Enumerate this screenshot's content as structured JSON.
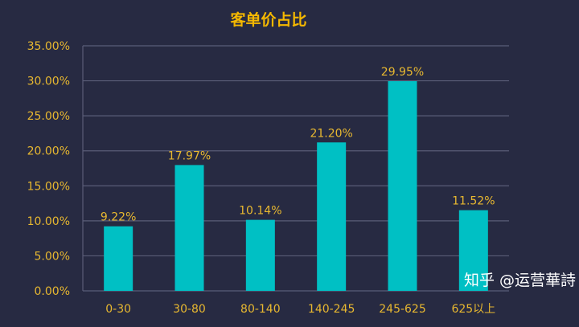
{
  "chart_data": {
    "type": "bar",
    "title": "客单价占比",
    "categories": [
      "0-30",
      "30-80",
      "80-140",
      "140-245",
      "245-625",
      "625以上"
    ],
    "values": [
      9.22,
      17.97,
      10.14,
      21.2,
      29.95,
      11.52
    ],
    "data_labels": [
      "9.22%",
      "17.97%",
      "10.14%",
      "21.20%",
      "29.95%",
      "11.52%"
    ],
    "yticks": [
      "0.00%",
      "5.00%",
      "10.00%",
      "15.00%",
      "20.00%",
      "25.00%",
      "30.00%",
      "35.00%"
    ],
    "ylim": [
      0,
      35
    ],
    "grid": true,
    "colors": {
      "bar": "#00c0c4",
      "text": "#e8b830",
      "grid": "#5a5d78",
      "background": "#272a42"
    }
  },
  "watermark": "知乎 @运营華詩"
}
